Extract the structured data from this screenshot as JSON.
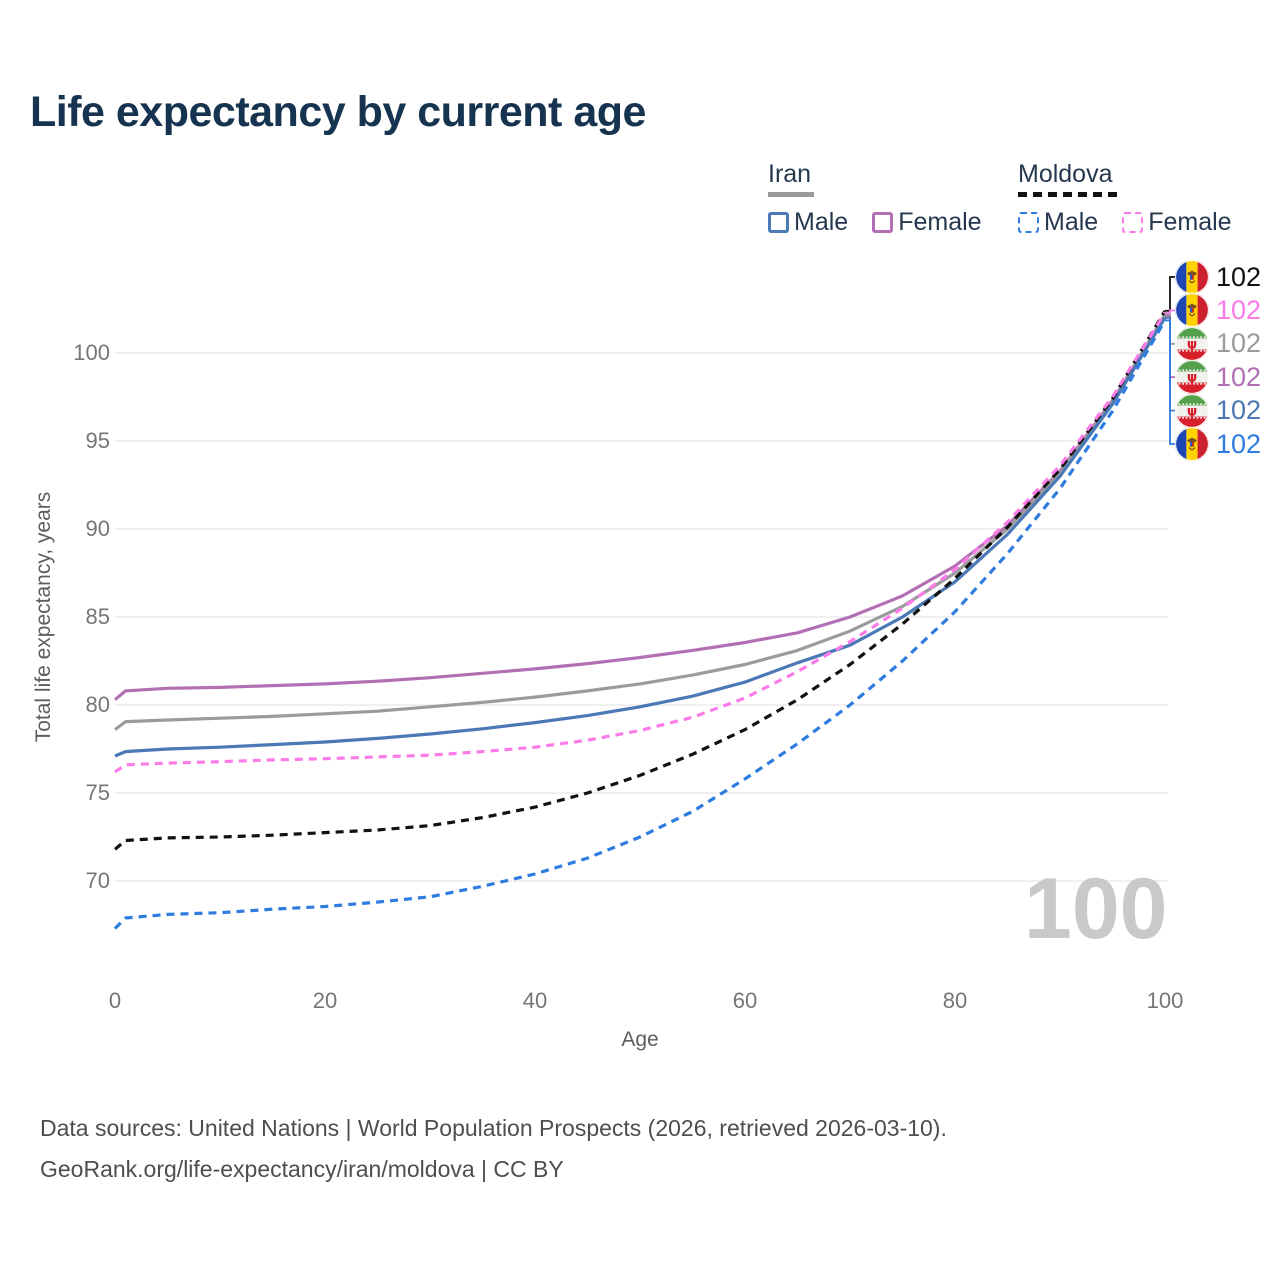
{
  "title": "Life expectancy by current age",
  "legend": {
    "groups": [
      {
        "country": "Iran",
        "underline_color": "#9a9a9a",
        "underline_dashed": false,
        "underline_width": 46,
        "items": [
          {
            "label": "Male",
            "color": "#4a79b6",
            "dashed": false
          },
          {
            "label": "Female",
            "color": "#b26fb4",
            "dashed": false
          }
        ]
      },
      {
        "country": "Moldova",
        "underline_color": "#111111",
        "underline_dashed": true,
        "underline_width": 101,
        "items": [
          {
            "label": "Male",
            "color": "#2e7ce0",
            "dashed": true
          },
          {
            "label": "Female",
            "color": "#fb7ce8",
            "dashed": true
          }
        ]
      }
    ]
  },
  "axes": {
    "y_title": "Total life expectancy, years",
    "x_title": "Age",
    "y_ticks": [
      70,
      75,
      80,
      85,
      90,
      95,
      100
    ],
    "x_ticks": [
      0,
      20,
      40,
      60,
      80,
      100
    ]
  },
  "watermark": "100",
  "end_labels": [
    {
      "flag": "moldova",
      "series": "moldova_both",
      "value": "102",
      "color": "#111111"
    },
    {
      "flag": "moldova",
      "series": "moldova_female",
      "value": "102",
      "color": "#fb7ce8"
    },
    {
      "flag": "iran",
      "series": "iran_both",
      "value": "102",
      "color": "#9b9b9b"
    },
    {
      "flag": "iran",
      "series": "iran_female",
      "value": "102",
      "color": "#b26fb4"
    },
    {
      "flag": "iran",
      "series": "iran_male",
      "value": "102",
      "color": "#4a79b6"
    },
    {
      "flag": "moldova",
      "series": "moldova_male",
      "value": "102",
      "color": "#2e7ce0"
    }
  ],
  "footer": {
    "line1": "Data sources: United Nations | World Population Prospects (2026, retrieved 2026-03-10).",
    "line2": "GeoRank.org/life-expectancy/iran/moldova | CC BY"
  },
  "chart_data": {
    "type": "line",
    "title": "Life expectancy by current age",
    "xlabel": "Age",
    "ylabel": "Total life expectancy, years",
    "xlim": [
      0,
      100
    ],
    "ylim": [
      66,
      103
    ],
    "grid": "horizontal-only",
    "legend_position": "top-right",
    "x": [
      0,
      1,
      5,
      10,
      15,
      20,
      25,
      30,
      35,
      40,
      45,
      50,
      55,
      60,
      65,
      70,
      75,
      80,
      85,
      90,
      95,
      100
    ],
    "series": [
      {
        "key": "iran_female",
        "name": "Iran Female",
        "color": "#b26fb4",
        "dashed": false,
        "values": [
          80.3,
          80.8,
          80.95,
          81.0,
          81.1,
          81.2,
          81.35,
          81.55,
          81.8,
          82.05,
          82.35,
          82.7,
          83.1,
          83.55,
          84.1,
          85.0,
          86.2,
          87.9,
          90.2,
          93.3,
          97.3,
          102.1
        ]
      },
      {
        "key": "iran_both",
        "name": "Iran Both sexes",
        "color": "#9b9b9b",
        "dashed": false,
        "values": [
          78.6,
          79.05,
          79.15,
          79.25,
          79.35,
          79.5,
          79.65,
          79.9,
          80.15,
          80.45,
          80.8,
          81.2,
          81.7,
          82.3,
          83.1,
          84.2,
          85.6,
          87.5,
          90.0,
          93.2,
          97.2,
          102.2
        ]
      },
      {
        "key": "iran_male",
        "name": "Iran Male",
        "color": "#4a79b6",
        "dashed": false,
        "values": [
          77.1,
          77.35,
          77.5,
          77.6,
          77.75,
          77.9,
          78.1,
          78.35,
          78.65,
          79.0,
          79.4,
          79.9,
          80.5,
          81.3,
          82.4,
          83.4,
          85.0,
          87.0,
          89.7,
          93.0,
          97.1,
          102.0
        ]
      },
      {
        "key": "moldova_both",
        "name": "Moldova Both sexes",
        "color": "#111111",
        "dashed": true,
        "values": [
          71.8,
          72.3,
          72.45,
          72.5,
          72.6,
          72.75,
          72.9,
          73.15,
          73.6,
          74.2,
          75.0,
          76.0,
          77.2,
          78.6,
          80.3,
          82.3,
          84.6,
          87.2,
          90.1,
          93.4,
          97.4,
          102.4
        ]
      },
      {
        "key": "moldova_male",
        "name": "Moldova Male",
        "color": "#2e7ce0",
        "dashed": true,
        "values": [
          67.3,
          67.9,
          68.1,
          68.2,
          68.4,
          68.55,
          68.8,
          69.1,
          69.7,
          70.4,
          71.3,
          72.5,
          73.95,
          75.8,
          77.8,
          80.0,
          82.5,
          85.3,
          88.6,
          92.3,
          96.7,
          101.85
        ]
      },
      {
        "key": "moldova_female",
        "name": "Moldova Female",
        "color": "#fb7ce8",
        "dashed": true,
        "values": [
          76.2,
          76.6,
          76.7,
          76.78,
          76.88,
          76.95,
          77.05,
          77.15,
          77.35,
          77.6,
          78.0,
          78.55,
          79.3,
          80.4,
          81.9,
          83.6,
          85.5,
          87.7,
          90.4,
          93.6,
          97.5,
          102.3
        ]
      }
    ]
  }
}
